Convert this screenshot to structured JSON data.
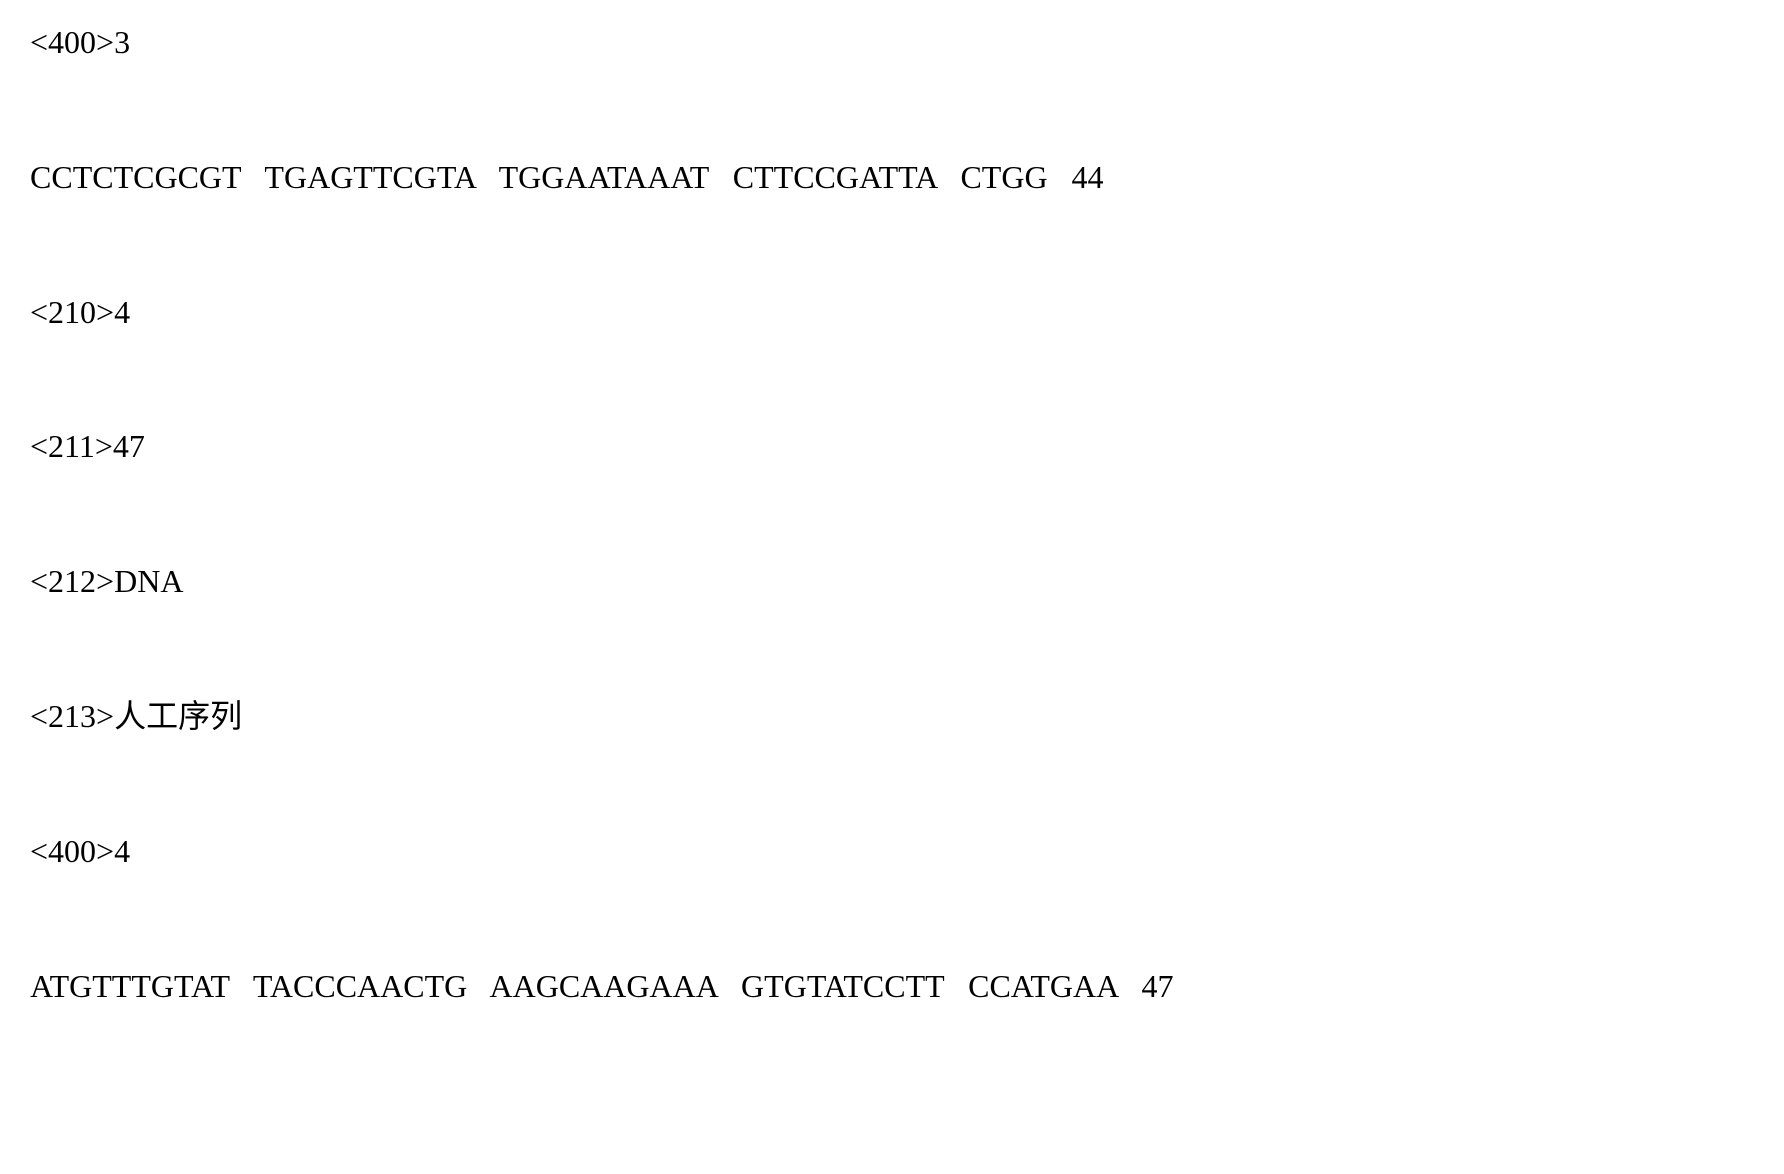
{
  "lines": [
    {
      "tag": "<400>3",
      "type": "tag"
    },
    {
      "sequence": "CCTCTCGCGT  TGAGTTCGTA  TGGAATAAAT  CTTCCGATTA  CTGG  44",
      "type": "sequence"
    },
    {
      "tag": "<210>4",
      "type": "tag"
    },
    {
      "tag": "<211>47",
      "type": "tag"
    },
    {
      "tag": "<212>DNA",
      "type": "tag"
    },
    {
      "tag": "<213>人工序列",
      "type": "tag"
    },
    {
      "tag": "<400>4",
      "type": "tag"
    },
    {
      "sequence": "ATGTTTGTAT  TACCCAACTG  AAGCAAGAAA  GTGTATCCTT  CCATGAA 47",
      "type": "sequence"
    }
  ]
}
